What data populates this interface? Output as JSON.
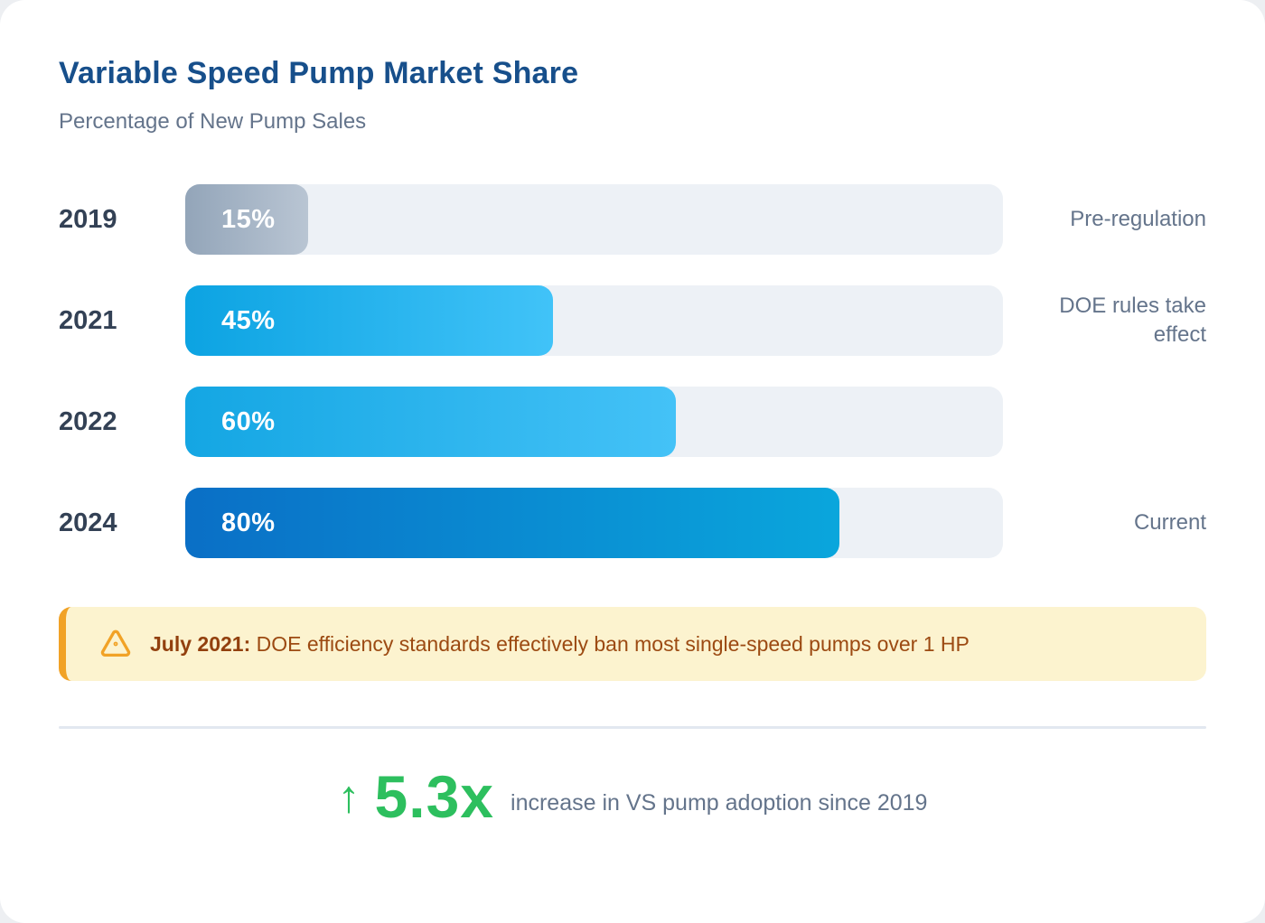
{
  "header": {
    "title": "Variable Speed Pump Market Share",
    "subtitle": "Percentage of New Pump Sales"
  },
  "chart_data": {
    "type": "bar",
    "orientation": "horizontal",
    "title": "Variable Speed Pump Market Share",
    "subtitle": "Percentage of New Pump Sales",
    "categories": [
      "2019",
      "2021",
      "2022",
      "2024"
    ],
    "values": [
      15,
      45,
      60,
      80
    ],
    "value_labels": [
      "15%",
      "45%",
      "60%",
      "80%"
    ],
    "annotations": [
      "Pre-regulation",
      "DOE rules take effect",
      "",
      "Current"
    ],
    "xlim": [
      0,
      100
    ],
    "grid": false,
    "legend": false,
    "track_color": "#edf1f6",
    "bar_gradients": [
      [
        "#93a5b9",
        "#b9c5d3"
      ],
      [
        "#0ca3e2",
        "#41c3f8"
      ],
      [
        "#14a6e3",
        "#44c2f7"
      ],
      [
        "#0a6fc6",
        "#0aa6dc"
      ]
    ]
  },
  "callout": {
    "icon": "warning-triangle-icon",
    "date_label": "July 2021:",
    "text": " DOE efficiency standards effectively ban most single-speed pumps over 1 HP",
    "background_color": "#fcf3cf",
    "accent_color": "#f1a226"
  },
  "stat": {
    "arrow": "↑",
    "value": "5.3x",
    "description": "increase in VS pump adoption since 2019",
    "color": "#2dbf5e"
  }
}
